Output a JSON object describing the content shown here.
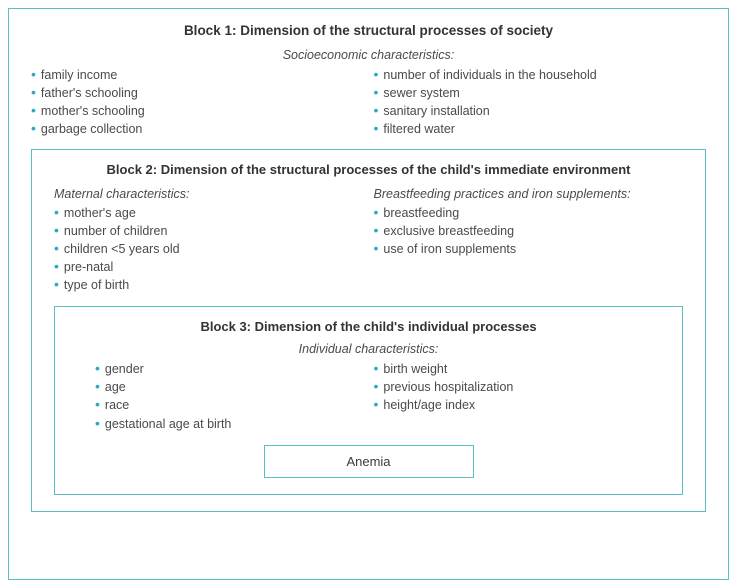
{
  "colors": {
    "border": "#5bbfc7",
    "bullet": "#2ba8c4",
    "text": "#4a4a4a",
    "title": "#333333",
    "background": "#ffffff"
  },
  "typography": {
    "title_fontsize": 13.5,
    "subtitle_fontsize": 12.5,
    "bullet_fontsize": 12.5,
    "font_family": "Segoe UI"
  },
  "block1": {
    "title": "Block 1: Dimension of the structural processes of society",
    "subtitle": "Socioeconomic characteristics:",
    "col1": [
      "family income",
      "father's schooling",
      "mother's schooling",
      "garbage collection"
    ],
    "col2": [
      "number of individuals in the household",
      "sewer system",
      "sanitary installation",
      "filtered water"
    ]
  },
  "block2": {
    "title": "Block 2: Dimension of the structural processes of the child's immediate environment",
    "group1": {
      "heading": "Maternal characteristics:",
      "items": [
        "mother's age",
        "number of children",
        "children  <5 years old",
        "pre-natal",
        "type of birth"
      ]
    },
    "group2": {
      "heading": "Breastfeeding practices and iron supplements:",
      "items": [
        "breastfeeding",
        "exclusive breastfeeding",
        "use of iron supplements"
      ]
    }
  },
  "block3": {
    "title": "Block 3: Dimension of the child's individual processes",
    "subtitle": "Individual characteristics:",
    "col1": [
      "gender",
      "age",
      "race",
      "gestational age at birth"
    ],
    "col2": [
      "birth weight",
      "previous hospitalization",
      "height/age index"
    ],
    "outcome": "Anemia"
  }
}
